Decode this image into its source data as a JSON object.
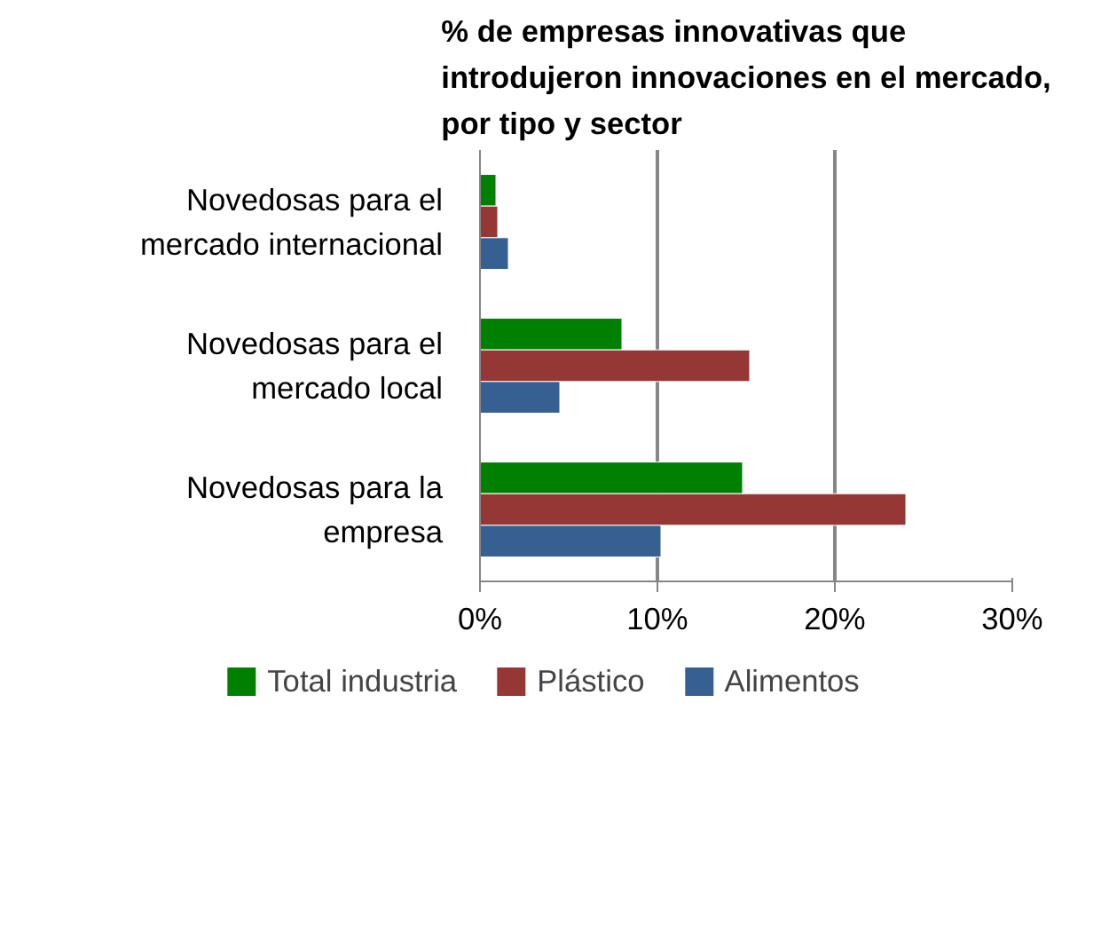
{
  "chart_data": {
    "type": "bar",
    "orientation": "horizontal",
    "title": "% de empresas innovativas que\nintrodujeron innovaciones en el mercado,\npor tipo y sector",
    "categories": [
      "Novedosas para el\nmercado internacional",
      "Novedosas para el\nmercado local",
      "Novedosas para la\nempresa"
    ],
    "series": [
      {
        "name": "Total industria",
        "color": "#008000",
        "values": [
          0.9,
          8.0,
          14.8
        ]
      },
      {
        "name": "Plástico",
        "color": "#953735",
        "values": [
          1.0,
          15.2,
          24.0
        ]
      },
      {
        "name": "Alimentos",
        "color": "#376092",
        "values": [
          1.6,
          4.5,
          10.2
        ]
      }
    ],
    "xlim": [
      0,
      30
    ],
    "xticks": [
      {
        "value": 0,
        "label": "0%"
      },
      {
        "value": 10,
        "label": "10%"
      },
      {
        "value": 20,
        "label": "20%"
      },
      {
        "value": 30,
        "label": "30%"
      }
    ],
    "grid": "x",
    "legend": "bottom"
  }
}
